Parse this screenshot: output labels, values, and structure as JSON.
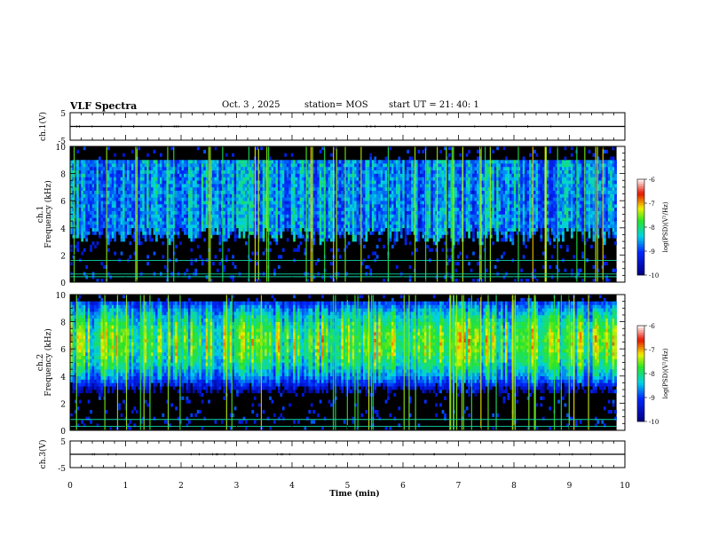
{
  "header": {
    "title": "VLF Spectra",
    "date": "Oct. 3  , 2025",
    "station": "station= MOS",
    "start": "start  UT  =   21: 40: 1"
  },
  "chart_data": [
    {
      "type": "line",
      "name": "ch1-voltage",
      "ylabel": "ch.1(V)",
      "ylim": [
        -5,
        5
      ],
      "yticks": [
        "5",
        "-5"
      ],
      "x": [
        0,
        10
      ],
      "values": [
        0,
        0
      ],
      "color": "#000000"
    },
    {
      "type": "heatmap",
      "name": "ch1-spectrogram",
      "ylabel": "Frequency (kHz)",
      "ylabel2": "ch.1",
      "ylim": [
        0,
        10
      ],
      "yticks": [
        "0",
        "2",
        "4",
        "6",
        "8",
        "10"
      ],
      "xlim": [
        0,
        9.85
      ],
      "emission_band_khz": [
        4,
        9
      ],
      "lines_khz": [
        0.4,
        0.6,
        1.6
      ],
      "colorbar": {
        "label": "log(PSD)(V²/Hz)",
        "min": -10,
        "max": -6,
        "ticks": [
          "-6",
          "-7",
          "-8",
          "-9",
          "-10"
        ]
      }
    },
    {
      "type": "heatmap",
      "name": "ch2-spectrogram",
      "ylabel": "Frequency (kHz)",
      "ylabel2": "ch.2",
      "ylim": [
        0,
        10
      ],
      "yticks": [
        "0",
        "2",
        "4",
        "6",
        "8",
        "10"
      ],
      "xlim": [
        0,
        9.85
      ],
      "emission_band_khz": [
        3.5,
        9.5
      ],
      "peak_khz": 6.5,
      "lines_khz": [
        0.3,
        0.8
      ],
      "colorbar": {
        "label": "log(PSD)(V²/Hz)",
        "min": -10,
        "max": -6,
        "ticks": [
          "-6",
          "-7",
          "-8",
          "-9",
          "-10"
        ]
      }
    },
    {
      "type": "line",
      "name": "ch3-voltage",
      "ylabel": "ch.3(V)",
      "ylim": [
        -5,
        5
      ],
      "yticks": [
        "5",
        "-5"
      ],
      "x": [
        0,
        10
      ],
      "values": [
        0,
        0
      ],
      "color": "#000000"
    }
  ],
  "xaxis": {
    "label": "Time  (min)",
    "ticks": [
      "0",
      "1",
      "2",
      "3",
      "4",
      "5",
      "6",
      "7",
      "8",
      "9",
      "10"
    ],
    "xlim": [
      0,
      10
    ]
  }
}
